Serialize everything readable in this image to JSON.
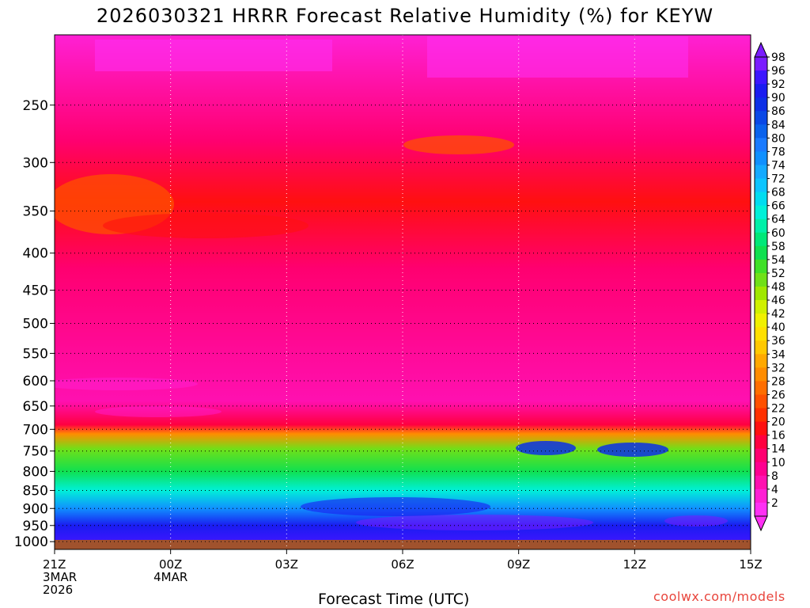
{
  "title": "2026030321 HRRR Forecast Relative Humidity (%) for KEYW",
  "xlabel": "Forecast Time (UTC)",
  "credit": "coolwx.com/models",
  "chart_data": {
    "type": "heatmap",
    "title": "2026030321 HRRR Forecast Relative Humidity (%) for KEYW",
    "xlabel": "Forecast Time (UTC)",
    "ylabel": "",
    "x_ticks": [
      {
        "hour": 0,
        "lines": [
          "21Z",
          "3MAR",
          "2026"
        ]
      },
      {
        "hour": 3,
        "lines": [
          "00Z",
          "4MAR"
        ]
      },
      {
        "hour": 6,
        "lines": [
          "03Z"
        ]
      },
      {
        "hour": 9,
        "lines": [
          "06Z"
        ]
      },
      {
        "hour": 12,
        "lines": [
          "09Z"
        ]
      },
      {
        "hour": 15,
        "lines": [
          "12Z"
        ]
      },
      {
        "hour": 18,
        "lines": [
          "15Z"
        ]
      }
    ],
    "xlim": [
      0,
      18
    ],
    "y_ticks": [
      250,
      300,
      350,
      400,
      450,
      500,
      550,
      600,
      650,
      700,
      750,
      800,
      850,
      900,
      950,
      1000
    ],
    "ylim": [
      1025,
      200
    ],
    "y_scale": "log",
    "grid": true,
    "colorbar": {
      "labels": [
        98,
        96,
        92,
        90,
        86,
        84,
        80,
        78,
        74,
        72,
        68,
        66,
        64,
        60,
        58,
        54,
        52,
        48,
        46,
        42,
        40,
        36,
        34,
        32,
        28,
        26,
        22,
        20,
        16,
        14,
        10,
        8,
        4,
        2
      ],
      "colors": [
        "#7a1cff",
        "#3c16ff",
        "#1a1cf0",
        "#0d2fe6",
        "#0a48e6",
        "#0a62ec",
        "#1a7aff",
        "#1090ff",
        "#14aaff",
        "#0dc4ff",
        "#00dcf0",
        "#00f0d8",
        "#00f0a8",
        "#00e878",
        "#10e050",
        "#40e028",
        "#70e018",
        "#a0e800",
        "#d0f000",
        "#f0f000",
        "#ffe000",
        "#ffc800",
        "#ffa800",
        "#ff8c00",
        "#ff6e00",
        "#ff5000",
        "#ff3000",
        "#ff1010",
        "#ff0040",
        "#ff0070",
        "#ff0090",
        "#ff10b0",
        "#ff20d4",
        "#ff30f4"
      ],
      "placement": "right"
    },
    "profile": [
      {
        "p": 200,
        "rh": 4
      },
      {
        "p": 280,
        "rh": 12
      },
      {
        "p": 340,
        "rh": 18
      },
      {
        "p": 420,
        "rh": 14
      },
      {
        "p": 640,
        "rh": 8
      },
      {
        "p": 690,
        "rh": 16
      },
      {
        "p": 710,
        "rh": 30
      },
      {
        "p": 745,
        "rh": 50
      },
      {
        "p": 800,
        "rh": 58
      },
      {
        "p": 850,
        "rh": 66
      },
      {
        "p": 900,
        "rh": 78
      },
      {
        "p": 950,
        "rh": 92
      },
      {
        "p": 1000,
        "rh": 96
      }
    ],
    "ground_color": "#a0522d"
  }
}
